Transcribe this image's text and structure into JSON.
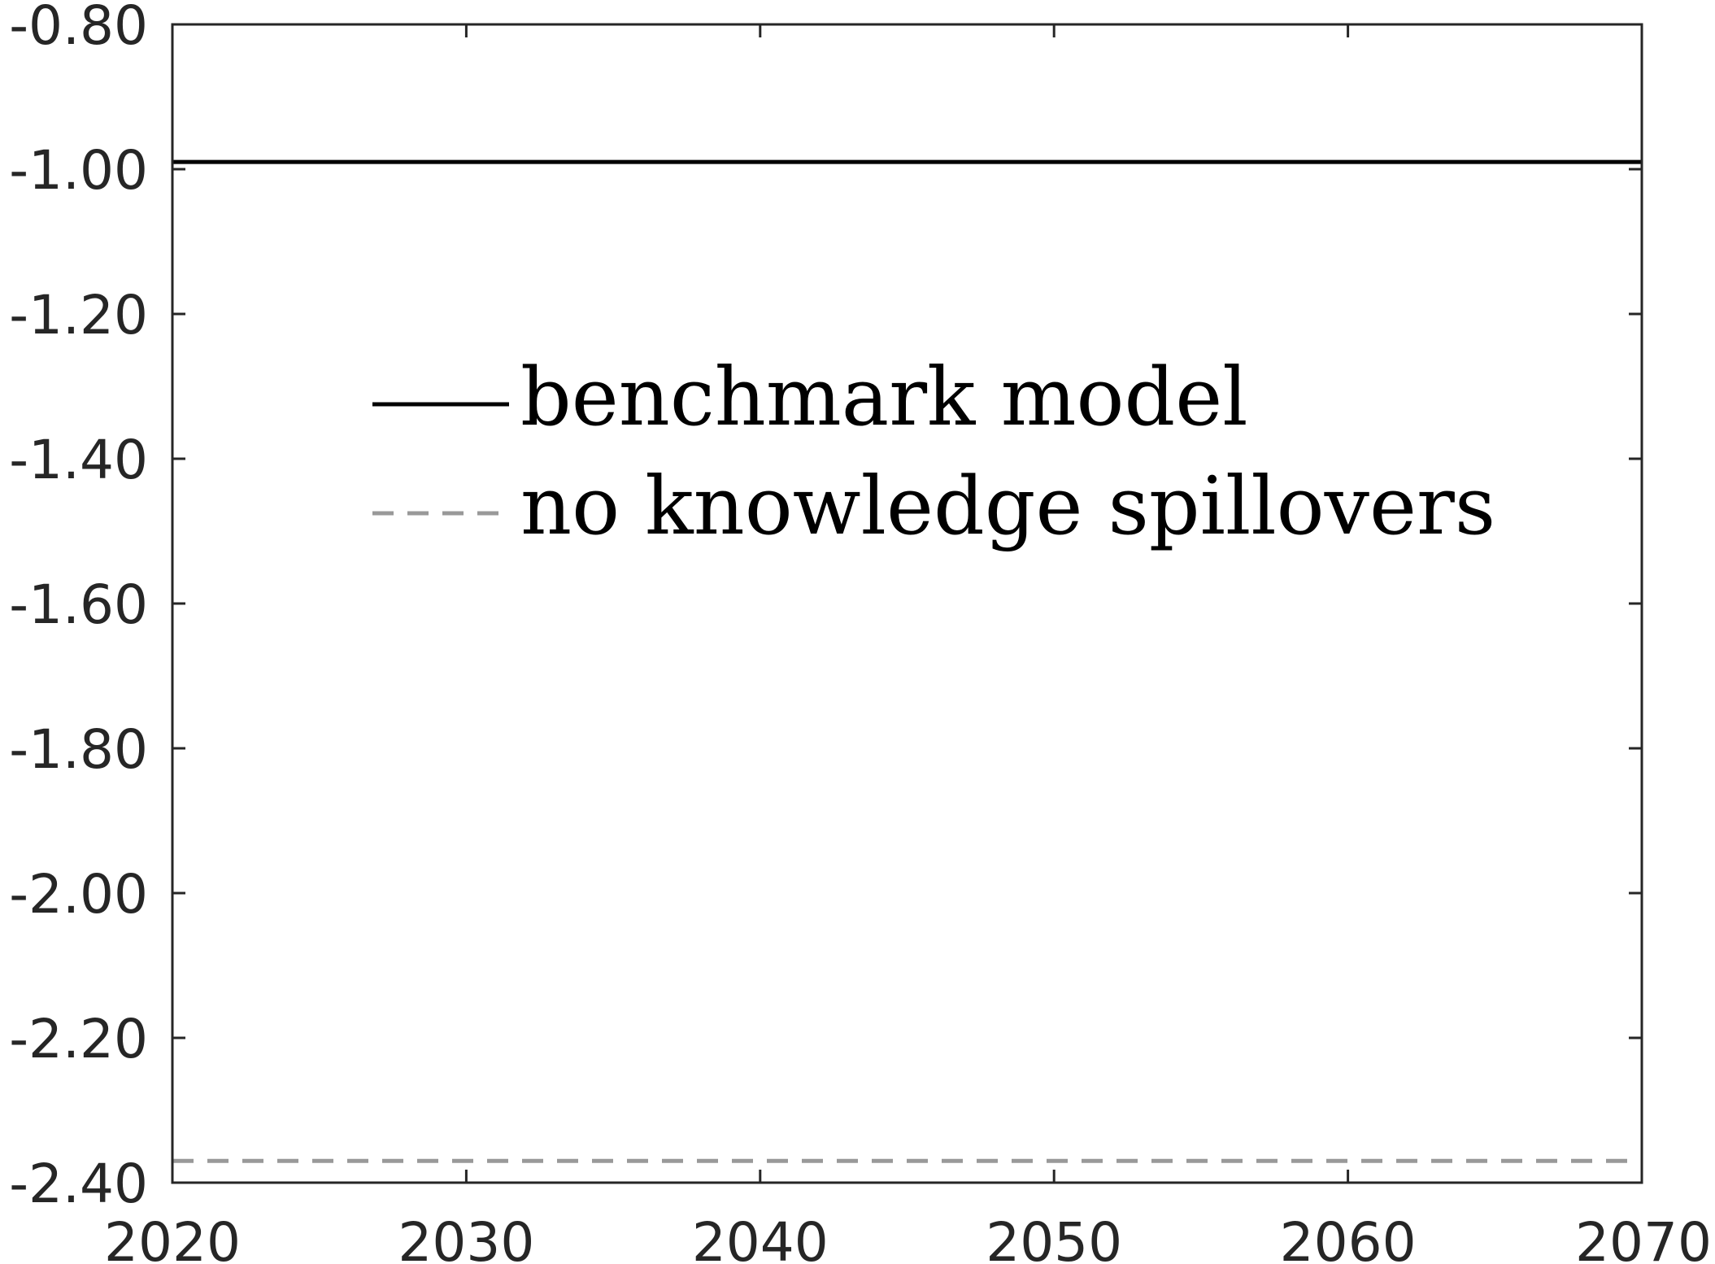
{
  "chart_data": {
    "type": "line",
    "title": "",
    "xlabel": "",
    "ylabel": "",
    "xlim": [
      2020,
      2070
    ],
    "ylim": [
      -2.4,
      -0.8
    ],
    "xticks": [
      2020,
      2030,
      2040,
      2050,
      2060,
      2070
    ],
    "xtick_labels": [
      "2020",
      "2030",
      "2040",
      "2050",
      "2060",
      "2070"
    ],
    "yticks": [
      -0.8,
      -1.0,
      -1.2,
      -1.4,
      -1.6,
      -1.8,
      -2.0,
      -2.2,
      -2.4
    ],
    "ytick_labels": [
      "-0.80",
      "-1.00",
      "-1.20",
      "-1.40",
      "-1.60",
      "-1.80",
      "-2.00",
      "-2.20",
      "-2.40"
    ],
    "grid": false,
    "legend_position": "upper-center",
    "series": [
      {
        "name": "benchmark model",
        "style": "solid",
        "color": "#000000",
        "x": [
          2020,
          2070
        ],
        "y": [
          -0.99,
          -0.99
        ]
      },
      {
        "name": "no knowledge spillovers",
        "style": "dashed",
        "color": "#999999",
        "x": [
          2020,
          2070
        ],
        "y": [
          -2.37,
          -2.37
        ]
      }
    ]
  }
}
